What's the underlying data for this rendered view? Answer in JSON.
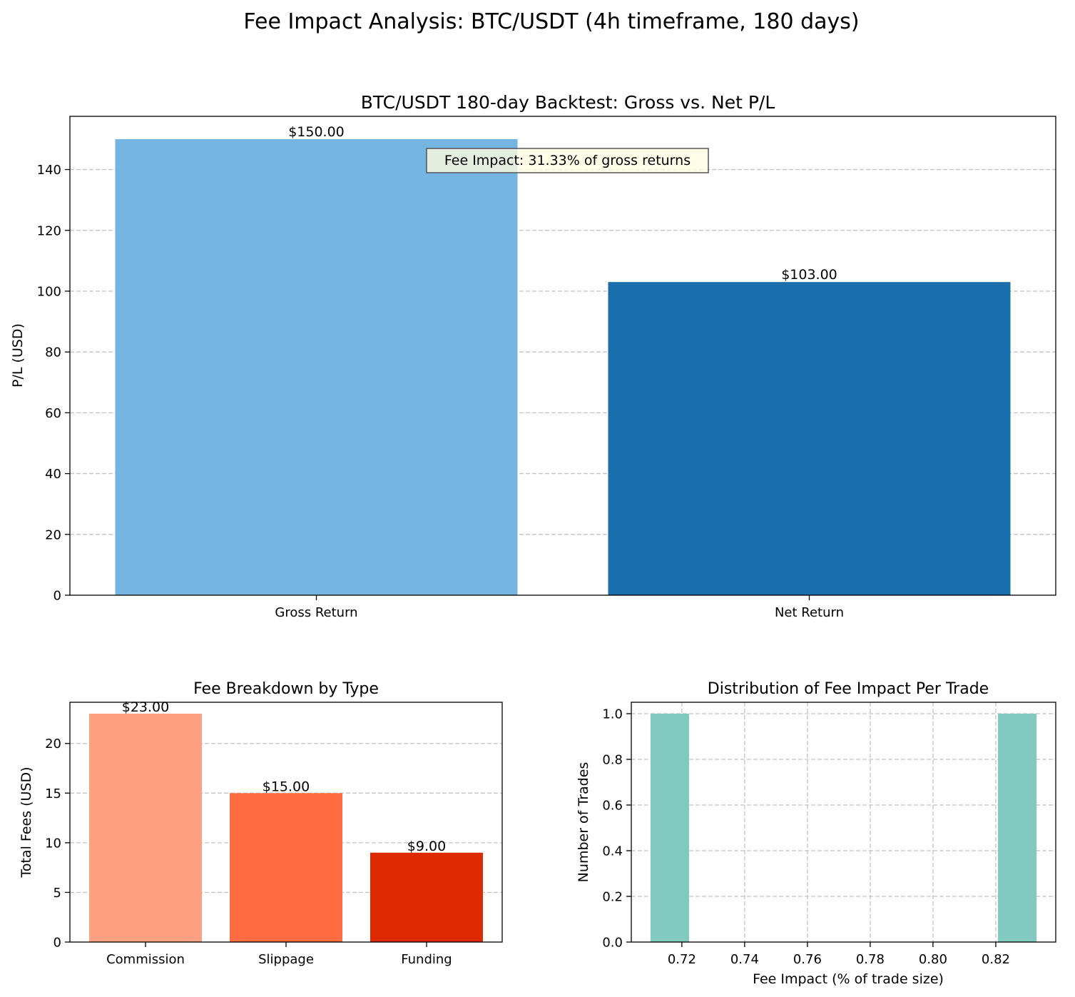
{
  "suptitle": "Fee Impact Analysis: BTC/USDT (4h timeframe, 180 days)",
  "colors": {
    "gross": "#74b5e2",
    "net": "#1b6eac",
    "commission": "#fea082",
    "slippage": "#ff6c42",
    "funding": "#dd2a02",
    "histogram": "#82cac1",
    "annotation_bg": "#fffde1",
    "grid": "#c3c3c3"
  },
  "chart_data": [
    {
      "type": "bar",
      "title": "BTC/USDT 180-day Backtest: Gross vs. Net P/L",
      "xlabel": "",
      "ylabel": "P/L (USD)",
      "categories": [
        "Gross Return",
        "Net Return"
      ],
      "values": [
        150,
        103
      ],
      "value_labels": [
        "$150.00",
        "$103.00"
      ],
      "ylim": [
        0,
        157.5
      ],
      "yticks": [
        0,
        20,
        40,
        60,
        80,
        100,
        120,
        140
      ],
      "grid": "y",
      "annotation": "Fee Impact: 31.33% of gross returns"
    },
    {
      "type": "bar",
      "title": "Fee Breakdown by Type",
      "xlabel": "",
      "ylabel": "Total Fees (USD)",
      "categories": [
        "Commission",
        "Slippage",
        "Funding"
      ],
      "values": [
        23,
        15,
        9
      ],
      "value_labels": [
        "$23.00",
        "$15.00",
        "$9.00"
      ],
      "ylim": [
        0,
        24.15
      ],
      "yticks": [
        0,
        5,
        10,
        15,
        20
      ],
      "grid": "y"
    },
    {
      "type": "bar",
      "title": "Distribution of Fee Impact Per Trade",
      "xlabel": "Fee Impact (% of trade size)",
      "ylabel": "Number of Trades",
      "bins": [
        {
          "x0": 0.71,
          "x1": 0.7223,
          "count": 1
        },
        {
          "x0": 0.8207,
          "x1": 0.833,
          "count": 1
        }
      ],
      "xlim": [
        0.7039,
        0.8391
      ],
      "ylim": [
        0,
        1.05
      ],
      "xticks": [
        "0.72",
        "0.74",
        "0.76",
        "0.78",
        "0.80",
        "0.82"
      ],
      "yticks": [
        "0.0",
        "0.2",
        "0.4",
        "0.6",
        "0.8",
        "1.0"
      ],
      "grid": "both"
    }
  ]
}
